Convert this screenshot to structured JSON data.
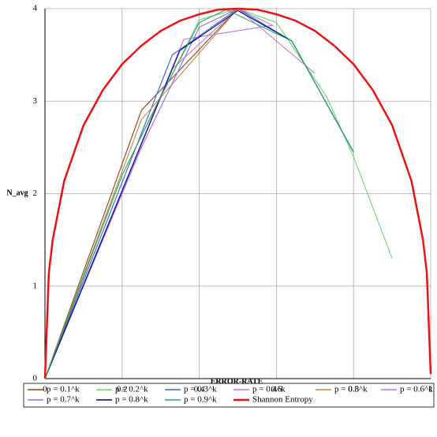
{
  "chart_data": {
    "type": "line",
    "xlabel": "ERROR-RATE",
    "ylabel": "N_avg",
    "xlim": [
      0,
      1
    ],
    "ylim": [
      0,
      4
    ],
    "xticks": [
      0,
      0.2,
      0.4,
      0.6,
      0.8,
      1
    ],
    "yticks": [
      0,
      1,
      2,
      3,
      4
    ],
    "grid": true,
    "legend": "bottom",
    "series": [
      {
        "name": "p = 0.1^k",
        "color": "#8b4513",
        "x": [
          0,
          0.25,
          0.5
        ],
        "values": [
          0,
          2.9,
          4.0
        ]
      },
      {
        "name": "p = 0.2^k",
        "color": "#66dd66",
        "x": [
          0,
          0.2,
          0.4,
          0.5,
          0.6,
          0.73,
          0.8,
          0.9
        ],
        "values": [
          0,
          2.2,
          3.88,
          4.0,
          3.85,
          3.05,
          2.4,
          1.3
        ]
      },
      {
        "name": "p = 0.3^k",
        "color": "#3366cc",
        "x": [
          0,
          0.33,
          0.5,
          0.64,
          0.8
        ],
        "values": [
          0,
          3.5,
          4.0,
          3.65,
          2.45
        ]
      },
      {
        "name": "p = 0.4^k",
        "color": "#cc77cc",
        "x": [
          0,
          0.33,
          0.5,
          0.7
        ],
        "values": [
          0,
          3.35,
          4.0,
          3.3
        ]
      },
      {
        "name": "p = 0.5^k",
        "color": "#cc8844",
        "x": [
          0,
          0.25,
          0.5
        ],
        "values": [
          0,
          2.8,
          4.0
        ]
      },
      {
        "name": "p = 0.6^k",
        "color": "#bb77ee",
        "x": [
          0,
          0.36,
          0.59,
          0.5
        ],
        "values": [
          0,
          3.67,
          3.82,
          4.0
        ]
      },
      {
        "name": "p = 0.7^k",
        "color": "#9966ff",
        "x": [
          0,
          0.25,
          0.4,
          0.5
        ],
        "values": [
          0,
          2.5,
          3.8,
          4.0
        ]
      },
      {
        "name": "p = 0.8^k",
        "color": "#000080",
        "x": [
          0,
          0.35,
          0.5,
          0.64,
          0.8
        ],
        "values": [
          0,
          3.55,
          3.98,
          3.65,
          2.45
        ]
      },
      {
        "name": "p = 0.9^k",
        "color": "#22aa66",
        "x": [
          0,
          0.2,
          0.3,
          0.4,
          0.47,
          0.64,
          0.8
        ],
        "values": [
          0,
          2.2,
          3.05,
          3.85,
          3.99,
          3.65,
          2.45
        ]
      },
      {
        "name": "Shannon Entropy",
        "color": "#ee1111",
        "x": [
          0,
          0.01,
          0.02,
          0.05,
          0.1,
          0.15,
          0.2,
          0.25,
          0.3,
          0.35,
          0.4,
          0.45,
          0.5,
          0.55,
          0.6,
          0.65,
          0.7,
          0.75,
          0.8,
          0.85,
          0.9,
          0.95,
          0.98,
          0.99,
          1
        ],
        "values": [
          0,
          1.14,
          1.5,
          2.14,
          2.74,
          3.12,
          3.4,
          3.6,
          3.76,
          3.87,
          3.94,
          3.99,
          4.0,
          3.99,
          3.94,
          3.87,
          3.76,
          3.6,
          3.4,
          3.12,
          2.74,
          2.14,
          1.5,
          1.14,
          0.05
        ]
      }
    ]
  }
}
